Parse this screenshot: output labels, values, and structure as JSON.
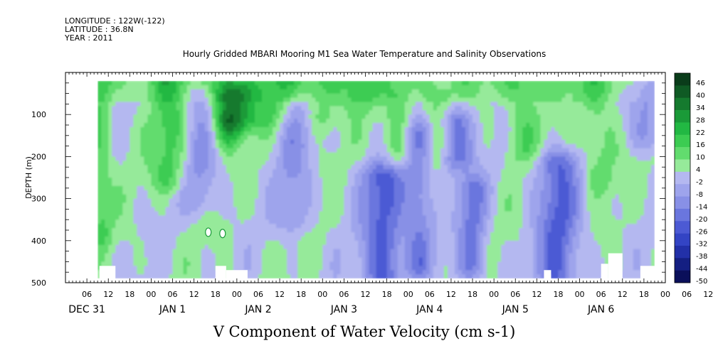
{
  "header": {
    "lines": [
      "LONGITUDE : 122W(-122)",
      "LATITUDE : 36.8N",
      "YEAR : 2011"
    ]
  },
  "chart_data": {
    "type": "heatmap",
    "title": "Hourly Gridded MBARI Mooring M1 Sea Water Temperature and Salinity Observations",
    "xlabel": "V Component of Water Velocity (cm s-1)",
    "ylabel": "DEPTH (m)",
    "x_range": [
      "2010-12-31T00:00",
      "2011-01-07T00:00"
    ],
    "data_x_range": [
      "2010-12-31T09:00",
      "2011-01-06T21:00"
    ],
    "ylim": [
      500,
      0
    ],
    "data_depth_range": [
      20,
      490
    ],
    "y_ticks": [
      100,
      200,
      300,
      400,
      500
    ],
    "hour_ticks": [
      "06",
      "12",
      "18",
      "00",
      "06",
      "12",
      "18",
      "00",
      "06",
      "12",
      "18",
      "00",
      "06",
      "12",
      "18",
      "00",
      "06",
      "12",
      "18",
      "00",
      "06",
      "12",
      "18",
      "00",
      "06",
      "12",
      "18",
      "00",
      "06",
      "12",
      "18"
    ],
    "day_labels": [
      "DEC 31",
      "JAN 1",
      "JAN 2",
      "JAN 3",
      "JAN 4",
      "JAN 5",
      "JAN 6"
    ],
    "colorbar": {
      "labels": [
        "46",
        "40",
        "34",
        "28",
        "22",
        "16",
        "10",
        "4",
        "-2",
        "-8",
        "-14",
        "-20",
        "-26",
        "-32",
        "-38",
        "-44",
        "-50"
      ],
      "colors": [
        "#0a3c1a",
        "#0f5a24",
        "#157a2e",
        "#1a9a38",
        "#22b843",
        "#3ccc52",
        "#62dc6e",
        "#96ea9a",
        "#b4b8f0",
        "#9ea4ec",
        "#8890e6",
        "#6a76de",
        "#4c5ad4",
        "#3344c4",
        "#2230a8",
        "#141f82",
        "#0a0f5a"
      ]
    },
    "notable_features": [
      "positive v (green) bands near surface and at ~Jan 2 00h column",
      "negative v (blue) bands at depth around Jan 3 18h, Jan 4 12h, Jan 5 18h",
      "small data gaps near 390 m around Jan 1 16h-21h",
      "missing data (white) near bottom at several times"
    ]
  }
}
